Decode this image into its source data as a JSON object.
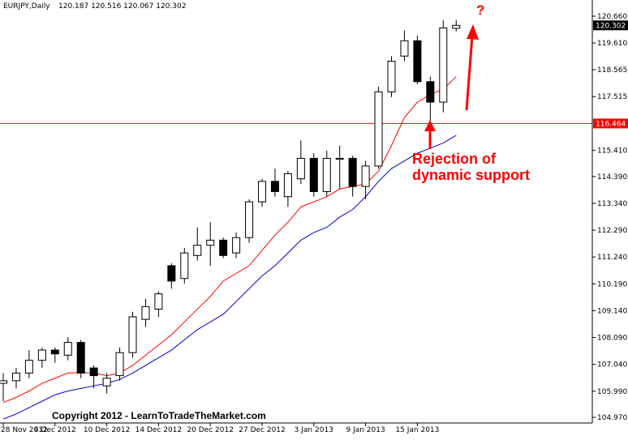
{
  "header": {
    "symbol": "EURJPY,Daily",
    "ohlc": "120.187 120.516 120.067 120.302"
  },
  "copyright": "Copyright 2012 - LearnToTradeTheMarket.com",
  "annotations": {
    "rejection_line1": "Rejection of",
    "rejection_line2": "dynamic support",
    "question_mark": "?"
  },
  "colors": {
    "bull_body": "#ffffff",
    "bear_body": "#000000",
    "wick": "#000000",
    "fast_ma": "#ff0000",
    "slow_ma": "#0000cc",
    "support_line": "#ff0000",
    "annotation": "#ff0000",
    "axis": "#000000"
  },
  "chart_data": {
    "type": "candlestick",
    "symbol": "EURJPY",
    "timeframe": "Daily",
    "ylim": [
      104.97,
      121.0
    ],
    "y_ticks": [
      "120.660",
      "119.610",
      "118.565",
      "117.515",
      "116.464",
      "115.410",
      "114.390",
      "113.340",
      "112.290",
      "111.240",
      "110.190",
      "109.140",
      "108.090",
      "107.040",
      "105.990",
      "104.970"
    ],
    "x_tick_labels": [
      "28 Nov 2012",
      "4 Dec 2012",
      "10 Dec 2012",
      "14 Dec 2012",
      "20 Dec 2012",
      "27 Dec 2012",
      "3 Jan 2013",
      "9 Jan 2013",
      "15 Jan 2013"
    ],
    "x_tick_index": [
      0,
      4,
      8,
      12,
      16,
      20,
      24,
      28,
      32
    ],
    "candles": [
      {
        "o": 106.3,
        "h": 106.7,
        "l": 105.6,
        "c": 106.4
      },
      {
        "o": 106.4,
        "h": 106.9,
        "l": 106.1,
        "c": 106.7
      },
      {
        "o": 106.7,
        "h": 107.6,
        "l": 106.5,
        "c": 107.2
      },
      {
        "o": 107.2,
        "h": 107.7,
        "l": 106.9,
        "c": 107.6
      },
      {
        "o": 107.6,
        "h": 107.7,
        "l": 107.1,
        "c": 107.45
      },
      {
        "o": 107.4,
        "h": 108.1,
        "l": 107.2,
        "c": 107.9
      },
      {
        "o": 107.9,
        "h": 108.0,
        "l": 106.5,
        "c": 106.7
      },
      {
        "o": 106.9,
        "h": 107.0,
        "l": 106.1,
        "c": 106.6
      },
      {
        "o": 106.2,
        "h": 106.7,
        "l": 105.9,
        "c": 106.5
      },
      {
        "o": 106.6,
        "h": 107.7,
        "l": 106.4,
        "c": 107.5
      },
      {
        "o": 107.5,
        "h": 109.1,
        "l": 107.3,
        "c": 108.9
      },
      {
        "o": 108.8,
        "h": 109.6,
        "l": 108.5,
        "c": 109.3
      },
      {
        "o": 109.2,
        "h": 109.9,
        "l": 108.9,
        "c": 109.8
      },
      {
        "o": 110.9,
        "h": 111.0,
        "l": 110.0,
        "c": 110.3
      },
      {
        "o": 110.4,
        "h": 111.6,
        "l": 110.2,
        "c": 111.4
      },
      {
        "o": 111.3,
        "h": 112.4,
        "l": 111.1,
        "c": 111.7
      },
      {
        "o": 111.7,
        "h": 112.6,
        "l": 110.9,
        "c": 111.9
      },
      {
        "o": 111.9,
        "h": 112.0,
        "l": 111.2,
        "c": 111.3
      },
      {
        "o": 111.4,
        "h": 112.2,
        "l": 111.2,
        "c": 112.0
      },
      {
        "o": 112.0,
        "h": 113.5,
        "l": 111.8,
        "c": 113.4
      },
      {
        "o": 113.4,
        "h": 114.3,
        "l": 113.2,
        "c": 114.2
      },
      {
        "o": 114.2,
        "h": 114.7,
        "l": 113.6,
        "c": 113.8
      },
      {
        "o": 113.6,
        "h": 114.6,
        "l": 113.2,
        "c": 114.5
      },
      {
        "o": 114.3,
        "h": 115.8,
        "l": 114.1,
        "c": 115.1
      },
      {
        "o": 115.1,
        "h": 115.3,
        "l": 113.6,
        "c": 113.8
      },
      {
        "o": 113.8,
        "h": 115.4,
        "l": 113.6,
        "c": 115.1
      },
      {
        "o": 115.1,
        "h": 115.6,
        "l": 113.9,
        "c": 115.1
      },
      {
        "o": 115.1,
        "h": 115.2,
        "l": 113.6,
        "c": 114.0
      },
      {
        "o": 114.0,
        "h": 115.0,
        "l": 113.5,
        "c": 114.8
      },
      {
        "o": 114.8,
        "h": 117.9,
        "l": 114.7,
        "c": 117.7
      },
      {
        "o": 117.7,
        "h": 119.1,
        "l": 117.5,
        "c": 118.9
      },
      {
        "o": 119.1,
        "h": 120.1,
        "l": 118.9,
        "c": 119.7
      },
      {
        "o": 119.7,
        "h": 119.9,
        "l": 118.0,
        "c": 118.1
      },
      {
        "o": 118.1,
        "h": 118.3,
        "l": 116.4,
        "c": 117.3
      },
      {
        "o": 117.3,
        "h": 120.5,
        "l": 116.9,
        "c": 120.2
      },
      {
        "o": 120.187,
        "h": 120.516,
        "l": 120.067,
        "c": 120.302
      }
    ],
    "fast_ma": [
      105.55,
      105.75,
      106.0,
      106.3,
      106.5,
      106.7,
      106.72,
      106.7,
      106.6,
      106.7,
      107.0,
      107.4,
      107.8,
      108.2,
      108.7,
      109.2,
      109.7,
      110.3,
      110.6,
      110.9,
      111.5,
      112.1,
      112.6,
      113.2,
      113.4,
      113.6,
      113.9,
      114.0,
      114.1,
      114.6,
      115.6,
      116.7,
      117.3,
      117.6,
      117.8,
      118.3
    ],
    "slow_ma": [
      104.9,
      105.1,
      105.35,
      105.6,
      105.85,
      106.0,
      106.1,
      106.2,
      106.3,
      106.45,
      106.7,
      107.0,
      107.3,
      107.6,
      108.0,
      108.4,
      108.7,
      109.0,
      109.5,
      110.0,
      110.5,
      110.9,
      111.4,
      111.9,
      112.2,
      112.4,
      112.8,
      113.1,
      113.6,
      114.2,
      114.7,
      115.0,
      115.3,
      115.5,
      115.7,
      116.0
    ],
    "support_level": "116.464",
    "last_price": "120.302",
    "grid": false
  }
}
